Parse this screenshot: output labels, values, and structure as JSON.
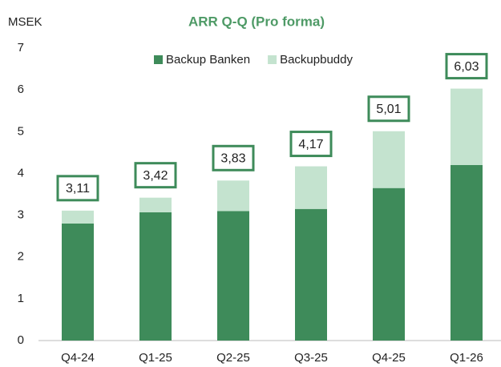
{
  "chart_data": {
    "type": "stacked_bar",
    "title": "ARR Q-Q (Pro forma)",
    "y_label": "MSEK",
    "categories": [
      "Q4-24",
      "Q1-25",
      "Q2-25",
      "Q3-25",
      "Q4-25",
      "Q1-26"
    ],
    "series": [
      {
        "name": "Backup Banken",
        "color": "#3e8b5a",
        "values": [
          2.8,
          3.07,
          3.1,
          3.15,
          3.65,
          4.2
        ]
      },
      {
        "name": "Backupbuddy",
        "color": "#c4e3cf",
        "values": [
          0.31,
          0.35,
          0.73,
          1.02,
          1.36,
          1.83
        ]
      }
    ],
    "totals": [
      3.11,
      3.42,
      3.83,
      4.17,
      5.01,
      6.03
    ],
    "total_labels": [
      "3,11",
      "3,42",
      "3,83",
      "4,17",
      "5,01",
      "6,03"
    ],
    "ylim": [
      0,
      7
    ],
    "yticks": [
      0,
      1,
      2,
      3,
      4,
      5,
      6,
      7
    ],
    "grid": false,
    "legend": "top"
  }
}
